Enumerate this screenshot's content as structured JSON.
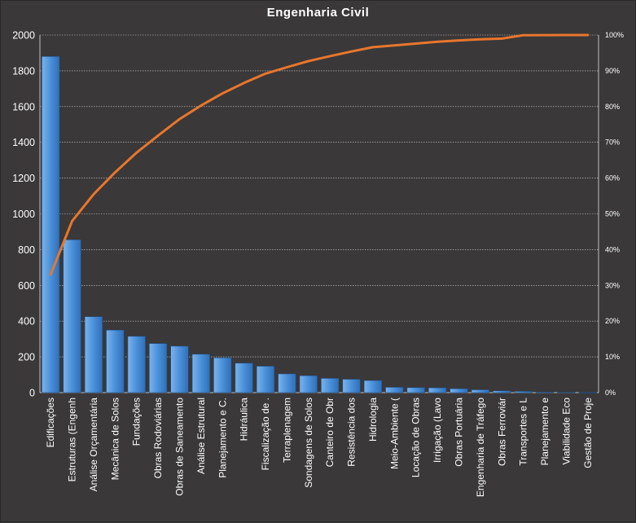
{
  "chart_data": {
    "type": "bar",
    "title": "Engenharia Civil",
    "categories": [
      "Edificações",
      "Estruturas (Engenh",
      "Análise Orçamentária",
      "Mecânica de Solos",
      "Fundações",
      "Obras Rodoviárias",
      "Obras de Saneamento",
      "Análise Estrutural",
      "Planejamento e C.",
      "Hidráulica",
      "Fiscalização de .",
      "Terraplenagem",
      "Sondagens de Solos",
      "Canteiro de Obr",
      "Resistência dos",
      "Hidrologia",
      "Meio-Ambiente (",
      "Locação de Obras",
      "Irrigação (Lavo",
      "Obras Portuária",
      "Engenharia de Tráfego",
      "Obras Ferroviár",
      "Transportes e L",
      "Planejamento e",
      "Viabilidade Eco",
      "Gestão de Proje"
    ],
    "series": [
      {
        "kind": "bar",
        "axis": "primary",
        "color": "#4a90d9",
        "values": [
          1880,
          855,
          425,
          350,
          315,
          275,
          260,
          215,
          195,
          165,
          148,
          105,
          95,
          80,
          75,
          68,
          30,
          28,
          27,
          22,
          16,
          10,
          7,
          3,
          2,
          1
        ]
      },
      {
        "kind": "line",
        "axis": "secondary",
        "color": "#e8762d",
        "values": [
          0.33,
          0.48,
          0.555,
          0.616,
          0.671,
          0.719,
          0.765,
          0.803,
          0.837,
          0.866,
          0.892,
          0.91,
          0.927,
          0.941,
          0.954,
          0.966,
          0.971,
          0.976,
          0.981,
          0.985,
          0.988,
          0.99,
          0.9995,
          0.9998,
          0.9999,
          1.0
        ]
      }
    ],
    "ylim": [
      0,
      2000
    ],
    "yticks": [
      0,
      200,
      400,
      600,
      800,
      1000,
      1200,
      1400,
      1600,
      1800,
      2000
    ],
    "y2lim": [
      0,
      1
    ],
    "y2ticks": [
      "0%",
      "10%",
      "20%",
      "30%",
      "40%",
      "50%",
      "60%",
      "70%",
      "80%",
      "90%",
      "100%"
    ],
    "grid": true,
    "legend": "none"
  }
}
